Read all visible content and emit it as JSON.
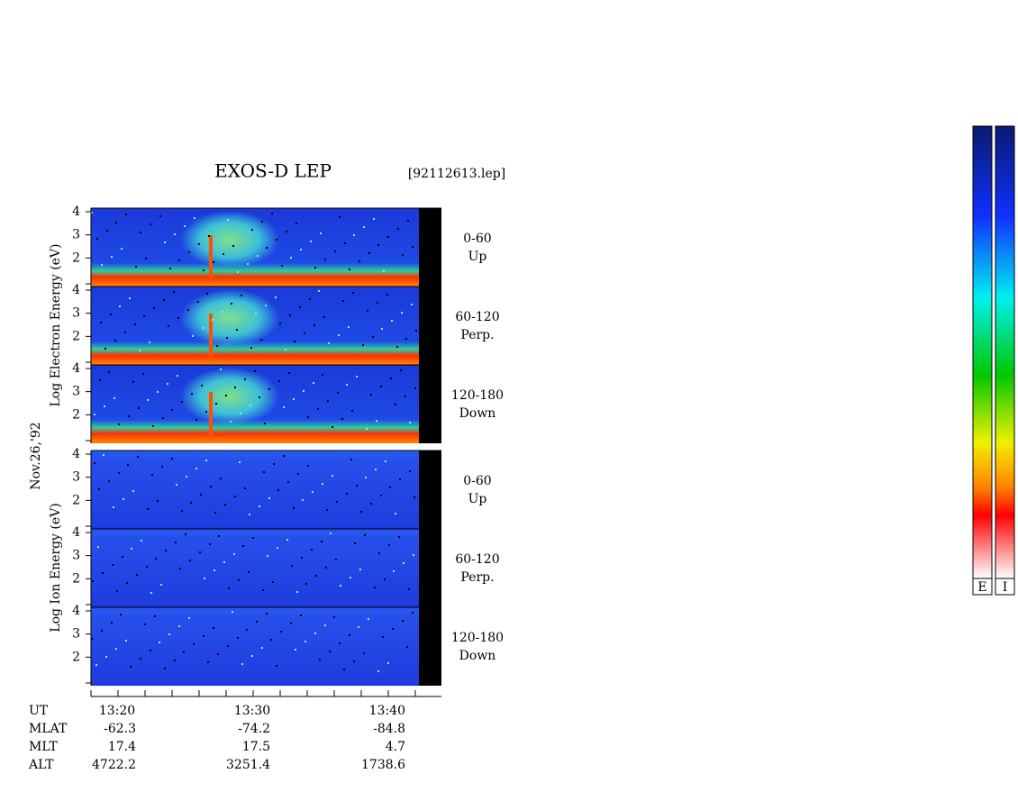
{
  "title": "EXOS-D LEP",
  "file": "[92112613.lep]",
  "date": "Nov.26,'92",
  "species": [
    {
      "ylabel": "Log  Electron  Energy (eV)",
      "panels": [
        {
          "angle": "0-60",
          "dir": "Up"
        },
        {
          "angle": "60-120",
          "dir": "Perp."
        },
        {
          "angle": "120-180",
          "dir": "Down"
        }
      ]
    },
    {
      "ylabel": "Log  Ion  Energy (eV)",
      "panels": [
        {
          "angle": "0-60",
          "dir": "Up"
        },
        {
          "angle": "60-120",
          "dir": "Perp."
        },
        {
          "angle": "120-180",
          "dir": "Down"
        }
      ]
    }
  ],
  "yticks": [
    4,
    3,
    2
  ],
  "orbit": {
    "rows": [
      {
        "name": "UT",
        "values": [
          "13:20",
          "13:30",
          "13:40"
        ]
      },
      {
        "name": "MLAT",
        "values": [
          "-62.3",
          "-74.2",
          "-84.8"
        ]
      },
      {
        "name": "MLT",
        "values": [
          "17.4",
          "17.5",
          "4.7"
        ]
      },
      {
        "name": "ALT",
        "values": [
          "4722.2",
          "3251.4",
          "1738.6"
        ]
      }
    ]
  },
  "colorbars": [
    "E",
    "I"
  ]
}
